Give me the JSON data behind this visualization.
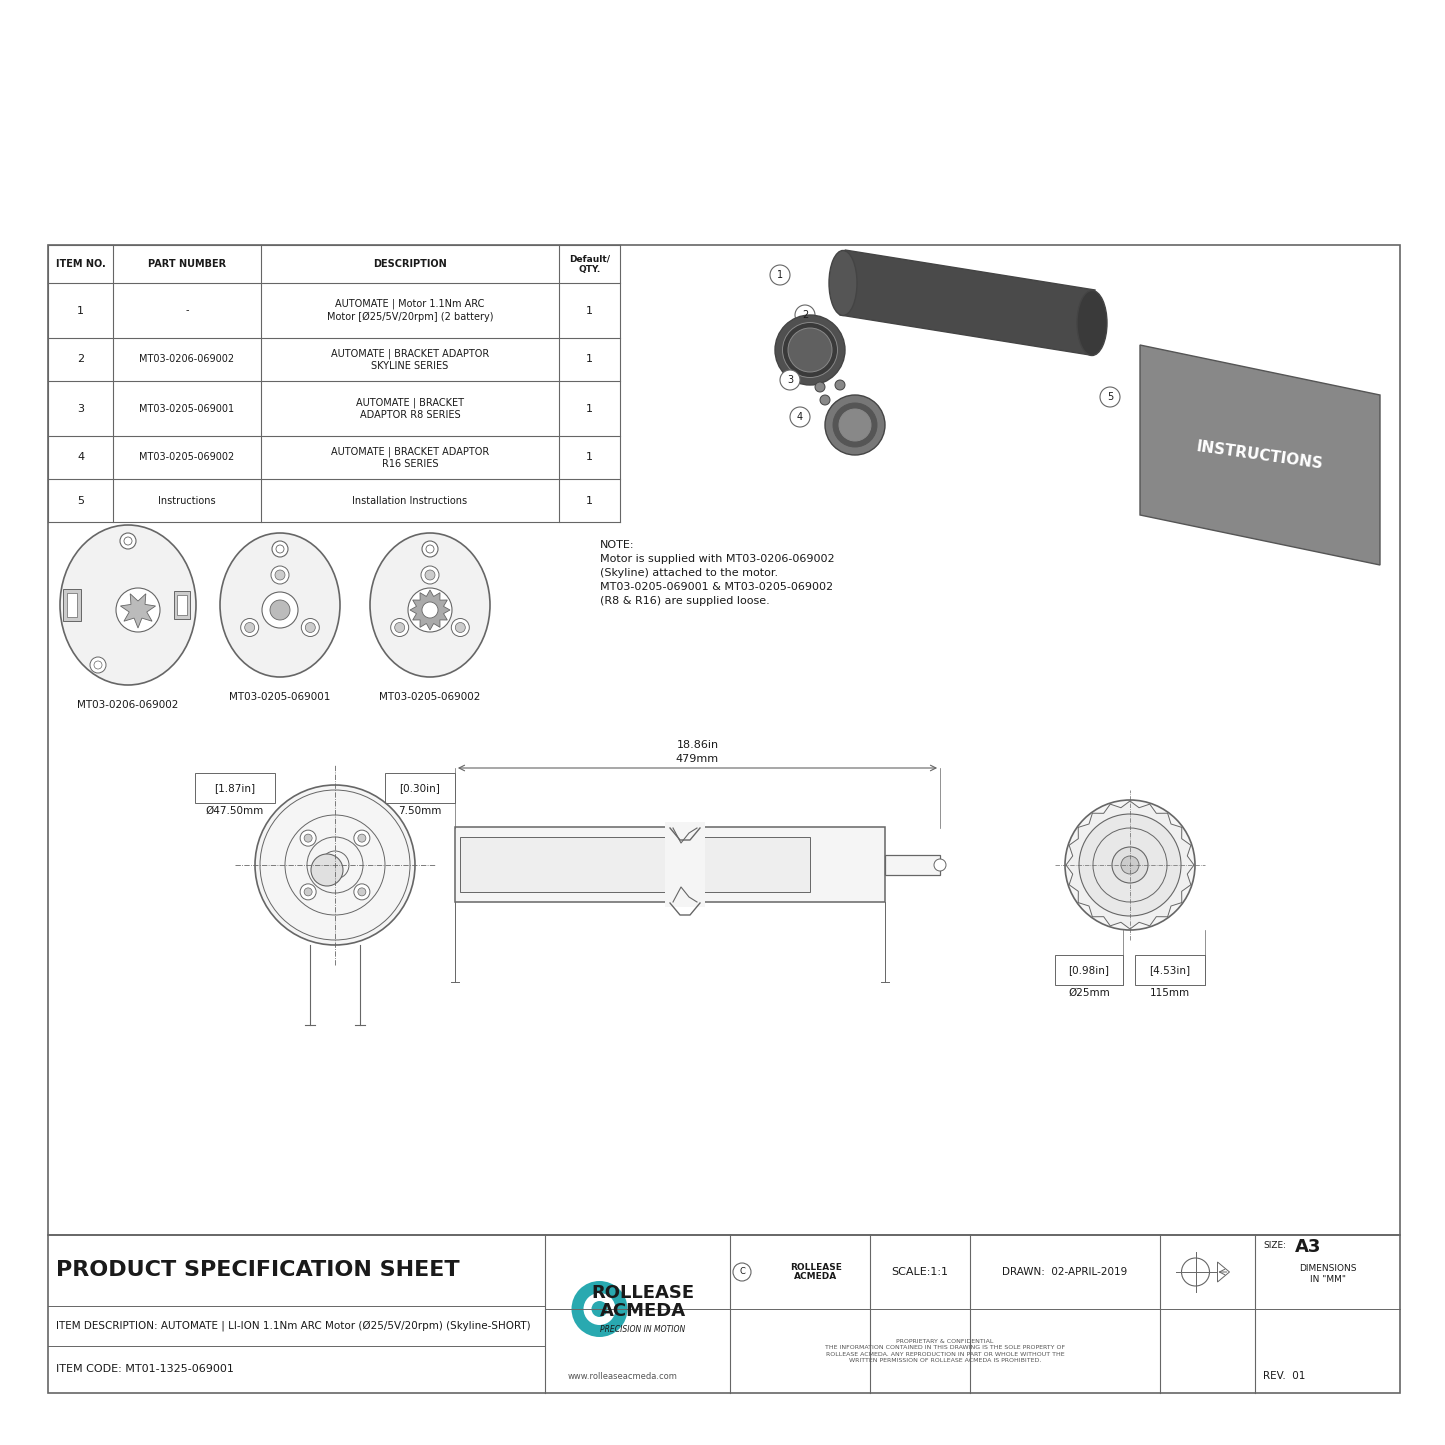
{
  "bg_color": "#ffffff",
  "table_header": [
    "ITEM NO.",
    "PART NUMBER",
    "DESCRIPTION",
    "Default/\nQTY."
  ],
  "table_rows": [
    [
      "1",
      "-",
      "AUTOMATE | Motor 1.1Nm ARC\nMotor [Ø25/5V/20rpm] (2 battery)",
      "1"
    ],
    [
      "2",
      "MT03-0206-069002",
      "AUTOMATE | BRACKET ADAPTOR\nSKYLINE SERIES",
      "1"
    ],
    [
      "3",
      "MT03-0205-069001",
      "AUTOMATE | BRACKET\nADAPTOR R8 SERIES",
      "1"
    ],
    [
      "4",
      "MT03-0205-069002",
      "AUTOMATE | BRACKET ADAPTOR\nR16 SERIES",
      "1"
    ],
    [
      "5",
      "Instructions",
      "Installation Instructions",
      "1"
    ]
  ],
  "part_labels": [
    "MT03-0206-069002",
    "MT03-0205-069001",
    "MT03-0205-069002"
  ],
  "note_text": "NOTE:\nMotor is supplied with MT03-0206-069002\n(Skyline) attached to the motor.\nMT03-0205-069001 & MT03-0205-069002\n(R8 & R16) are supplied loose.",
  "dim_length_in": "18.86in",
  "dim_length_mm": "479mm",
  "dim_dia1_in": "[1.87in]",
  "dim_dia1_mm": "Ø47.50mm",
  "dim_dia2_in": "[0.30in]",
  "dim_dia2_mm": "7.50mm",
  "dim_dia3_in": "[0.98in]",
  "dim_dia3_mm": "Ø25mm",
  "dim_dia4_in": "[4.53in]",
  "dim_dia4_mm": "115mm",
  "footer_product": "PRODUCT SPECIFICATION SHEET",
  "footer_item_desc": "ITEM DESCRIPTION: AUTOMATE | LI-ION 1.1Nm ARC Motor (Ø25/5V/20rpm) (Skyline-SHORT)",
  "footer_item_code": "ITEM CODE: MT01-1325-069001",
  "footer_brand": "ROLLEASE\nACMEDA",
  "footer_brand_sub": "PRECISION IN MOTION",
  "footer_website": "www.rolleaseacmeda.com",
  "footer_rollease": "ROLLEASE\nACMEDA",
  "footer_scale": "SCALE:1:1",
  "footer_drawn": "DRAWN:  02-APRIL-2019",
  "footer_dimensions": "DIMENSIONS\nIN \"MM\"",
  "footer_size": "A3",
  "footer_rev": "REV.  01",
  "footer_prop": "PROPRIETARY & CONFIDENTIAL\nTHE INFORMATION CONTAINED IN THIS DRAWING IS THE SOLE PROPERTY OF\nROLLEASE ACMEDA. ANY REPRODUCTION IN PART OR WHOLE WITHOUT THE\nWRITTEN PERMISSION OF ROLLEASE ACMEDA IS PROHIBITED.",
  "line_color": "#666666",
  "text_color": "#1a1a1a",
  "dark_gray": "#444444",
  "mid_gray": "#888888",
  "light_gray": "#dddddd",
  "teal": "#29a9b0"
}
